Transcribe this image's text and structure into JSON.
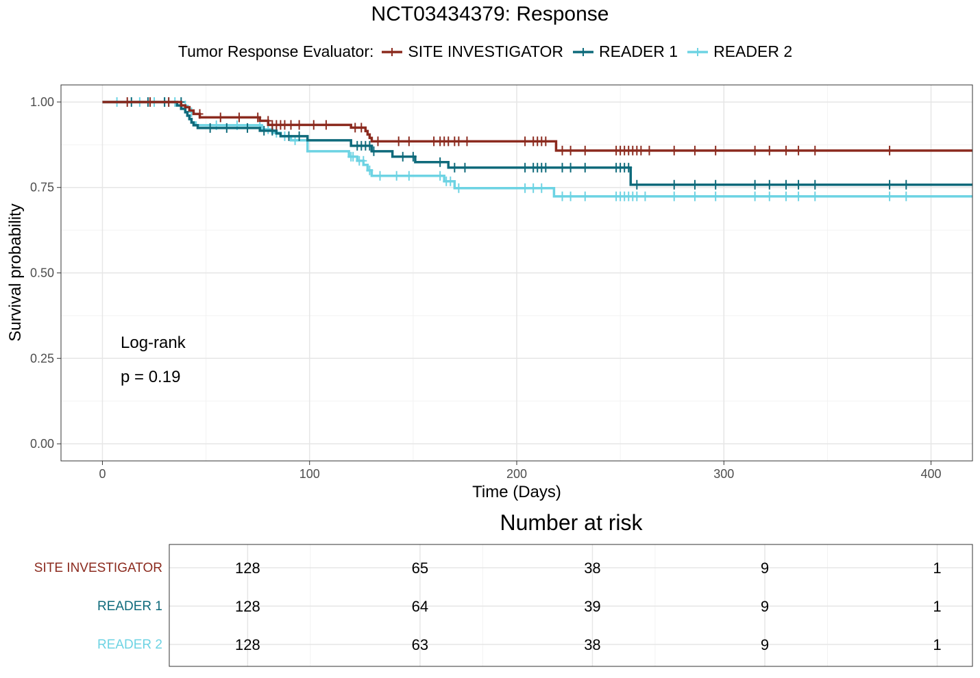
{
  "chart_data": {
    "type": "line",
    "title": "NCT03434379: Response",
    "xlabel": "Time (Days)",
    "ylabel": "Survival probability",
    "xlim": [
      -20,
      420
    ],
    "ylim": [
      -0.05,
      1.05
    ],
    "x_ticks": [
      "0",
      "100",
      "200",
      "300",
      "400"
    ],
    "y_ticks": [
      "0.00",
      "0.25",
      "0.50",
      "0.75",
      "1.00"
    ],
    "grid": true,
    "legend": {
      "title": "Tumor Response Evaluator:",
      "position": "top",
      "entries": [
        "SITE INVESTIGATOR",
        "READER 1",
        "READER 2"
      ]
    },
    "annotation": {
      "line1": "Log-rank",
      "line2": "p = 0.19"
    },
    "series": [
      {
        "name": "SITE INVESTIGATOR",
        "color": "#8B2A1E",
        "steps": [
          [
            0,
            1.0
          ],
          [
            38,
            0.99
          ],
          [
            40,
            0.985
          ],
          [
            42,
            0.975
          ],
          [
            44,
            0.965
          ],
          [
            47,
            0.955
          ],
          [
            76,
            0.945
          ],
          [
            80,
            0.933
          ],
          [
            120,
            0.925
          ],
          [
            127,
            0.915
          ],
          [
            128,
            0.905
          ],
          [
            129,
            0.895
          ],
          [
            130,
            0.885
          ],
          [
            219,
            0.858
          ],
          [
            420,
            0.858
          ]
        ],
        "censored": [
          [
            12,
            1.0
          ],
          [
            23,
            1.0
          ],
          [
            32,
            1.0
          ],
          [
            47,
            0.965
          ],
          [
            57,
            0.955
          ],
          [
            66,
            0.955
          ],
          [
            75,
            0.955
          ],
          [
            80,
            0.945
          ],
          [
            82,
            0.933
          ],
          [
            84,
            0.933
          ],
          [
            86,
            0.933
          ],
          [
            88,
            0.933
          ],
          [
            91,
            0.933
          ],
          [
            95,
            0.933
          ],
          [
            102,
            0.933
          ],
          [
            108,
            0.933
          ],
          [
            122,
            0.925
          ],
          [
            125,
            0.925
          ],
          [
            133,
            0.885
          ],
          [
            143,
            0.885
          ],
          [
            148,
            0.885
          ],
          [
            160,
            0.885
          ],
          [
            163,
            0.885
          ],
          [
            165,
            0.885
          ],
          [
            167,
            0.885
          ],
          [
            170,
            0.885
          ],
          [
            172,
            0.885
          ],
          [
            176,
            0.885
          ],
          [
            204,
            0.885
          ],
          [
            208,
            0.885
          ],
          [
            210,
            0.885
          ],
          [
            212,
            0.885
          ],
          [
            214,
            0.885
          ],
          [
            222,
            0.858
          ],
          [
            226,
            0.858
          ],
          [
            233,
            0.858
          ],
          [
            248,
            0.858
          ],
          [
            250,
            0.858
          ],
          [
            252,
            0.858
          ],
          [
            254,
            0.858
          ],
          [
            256,
            0.858
          ],
          [
            258,
            0.858
          ],
          [
            260,
            0.858
          ],
          [
            264,
            0.858
          ],
          [
            276,
            0.858
          ],
          [
            286,
            0.858
          ],
          [
            296,
            0.858
          ],
          [
            315,
            0.858
          ],
          [
            322,
            0.858
          ],
          [
            330,
            0.858
          ],
          [
            336,
            0.858
          ],
          [
            344,
            0.858
          ],
          [
            380,
            0.858
          ]
        ]
      },
      {
        "name": "READER 1",
        "color": "#0E6A7B",
        "steps": [
          [
            0,
            1.0
          ],
          [
            36,
            0.99
          ],
          [
            38,
            0.98
          ],
          [
            40,
            0.97
          ],
          [
            41,
            0.96
          ],
          [
            42,
            0.95
          ],
          [
            43,
            0.94
          ],
          [
            44,
            0.932
          ],
          [
            46,
            0.924
          ],
          [
            76,
            0.916
          ],
          [
            84,
            0.908
          ],
          [
            86,
            0.9
          ],
          [
            99,
            0.888
          ],
          [
            120,
            0.872
          ],
          [
            130,
            0.856
          ],
          [
            140,
            0.84
          ],
          [
            151,
            0.824
          ],
          [
            167,
            0.808
          ],
          [
            255,
            0.758
          ],
          [
            420,
            0.758
          ]
        ],
        "censored": [
          [
            14,
            1.0
          ],
          [
            22,
            1.0
          ],
          [
            30,
            1.0
          ],
          [
            38,
            1.0
          ],
          [
            52,
            0.924
          ],
          [
            60,
            0.924
          ],
          [
            70,
            0.924
          ],
          [
            78,
            0.916
          ],
          [
            82,
            0.916
          ],
          [
            90,
            0.9
          ],
          [
            95,
            0.9
          ],
          [
            123,
            0.872
          ],
          [
            125,
            0.872
          ],
          [
            127,
            0.872
          ],
          [
            129,
            0.872
          ],
          [
            131,
            0.856
          ],
          [
            145,
            0.84
          ],
          [
            150,
            0.84
          ],
          [
            163,
            0.824
          ],
          [
            170,
            0.808
          ],
          [
            175,
            0.808
          ],
          [
            204,
            0.808
          ],
          [
            208,
            0.808
          ],
          [
            210,
            0.808
          ],
          [
            212,
            0.808
          ],
          [
            214,
            0.808
          ],
          [
            222,
            0.808
          ],
          [
            226,
            0.808
          ],
          [
            233,
            0.808
          ],
          [
            248,
            0.808
          ],
          [
            250,
            0.808
          ],
          [
            252,
            0.808
          ],
          [
            254,
            0.808
          ],
          [
            258,
            0.758
          ],
          [
            276,
            0.758
          ],
          [
            286,
            0.758
          ],
          [
            296,
            0.758
          ],
          [
            315,
            0.758
          ],
          [
            322,
            0.758
          ],
          [
            330,
            0.758
          ],
          [
            336,
            0.758
          ],
          [
            344,
            0.758
          ],
          [
            380,
            0.758
          ],
          [
            388,
            0.758
          ]
        ]
      },
      {
        "name": "READER 2",
        "color": "#6DD3E3",
        "steps": [
          [
            0,
            1.0
          ],
          [
            36,
            0.99
          ],
          [
            38,
            0.98
          ],
          [
            40,
            0.97
          ],
          [
            41,
            0.96
          ],
          [
            42,
            0.95
          ],
          [
            43,
            0.94
          ],
          [
            45,
            0.932
          ],
          [
            77,
            0.92
          ],
          [
            82,
            0.91
          ],
          [
            86,
            0.9
          ],
          [
            91,
            0.888
          ],
          [
            99,
            0.856
          ],
          [
            119,
            0.84
          ],
          [
            123,
            0.828
          ],
          [
            126,
            0.816
          ],
          [
            128,
            0.8
          ],
          [
            130,
            0.784
          ],
          [
            165,
            0.768
          ],
          [
            170,
            0.748
          ],
          [
            218,
            0.724
          ],
          [
            420,
            0.724
          ]
        ],
        "censored": [
          [
            7,
            1.0
          ],
          [
            18,
            1.0
          ],
          [
            25,
            1.0
          ],
          [
            30,
            1.0
          ],
          [
            32,
            1.0
          ],
          [
            35,
            1.0
          ],
          [
            40,
            0.99
          ],
          [
            43,
            0.97
          ],
          [
            55,
            0.932
          ],
          [
            65,
            0.932
          ],
          [
            76,
            0.932
          ],
          [
            80,
            0.92
          ],
          [
            84,
            0.91
          ],
          [
            88,
            0.9
          ],
          [
            93,
            0.888
          ],
          [
            120,
            0.84
          ],
          [
            121,
            0.84
          ],
          [
            124,
            0.828
          ],
          [
            126,
            0.828
          ],
          [
            129,
            0.8
          ],
          [
            134,
            0.784
          ],
          [
            142,
            0.784
          ],
          [
            148,
            0.784
          ],
          [
            163,
            0.784
          ],
          [
            166,
            0.768
          ],
          [
            168,
            0.768
          ],
          [
            172,
            0.748
          ],
          [
            204,
            0.748
          ],
          [
            208,
            0.748
          ],
          [
            212,
            0.748
          ],
          [
            222,
            0.724
          ],
          [
            226,
            0.724
          ],
          [
            233,
            0.724
          ],
          [
            248,
            0.724
          ],
          [
            250,
            0.724
          ],
          [
            252,
            0.724
          ],
          [
            254,
            0.724
          ],
          [
            256,
            0.724
          ],
          [
            258,
            0.724
          ],
          [
            262,
            0.724
          ],
          [
            276,
            0.724
          ],
          [
            286,
            0.724
          ],
          [
            296,
            0.724
          ],
          [
            315,
            0.724
          ],
          [
            322,
            0.724
          ],
          [
            330,
            0.724
          ],
          [
            336,
            0.724
          ],
          [
            344,
            0.724
          ],
          [
            380,
            0.724
          ],
          [
            388,
            0.724
          ]
        ]
      }
    ]
  },
  "risk_table": {
    "title": "Number at risk",
    "time_points": [
      50,
      138,
      226,
      314,
      402
    ],
    "rows": [
      {
        "name": "SITE INVESTIGATOR",
        "color": "#8B2A1E",
        "values": [
          "128",
          "65",
          "38",
          "9",
          "1"
        ]
      },
      {
        "name": "READER 1",
        "color": "#0E6A7B",
        "values": [
          "128",
          "64",
          "39",
          "9",
          "1"
        ]
      },
      {
        "name": "READER 2",
        "color": "#6DD3E3",
        "values": [
          "128",
          "63",
          "38",
          "9",
          "1"
        ]
      }
    ]
  }
}
